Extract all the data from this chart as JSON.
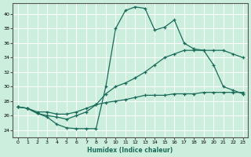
{
  "xlabel": "Humidex (Indice chaleur)",
  "bg_color": "#cceedd",
  "line_color": "#1a6b5a",
  "grid_color": "#ffffff",
  "xlim": [
    -0.5,
    23.5
  ],
  "ylim": [
    23.0,
    41.5
  ],
  "yticks": [
    24,
    26,
    28,
    30,
    32,
    34,
    36,
    38,
    40
  ],
  "xticks": [
    0,
    1,
    2,
    3,
    4,
    5,
    6,
    7,
    8,
    9,
    10,
    11,
    12,
    13,
    14,
    15,
    16,
    17,
    18,
    19,
    20,
    21,
    22,
    23
  ],
  "line1_x": [
    0,
    1,
    2,
    3,
    4,
    5,
    6,
    7,
    8,
    9,
    10,
    11,
    12,
    13,
    14,
    15,
    16,
    17,
    18,
    19,
    20,
    21,
    22,
    23
  ],
  "line1_y": [
    27.2,
    27.0,
    26.3,
    25.8,
    24.8,
    24.3,
    24.2,
    24.2,
    24.2,
    30.0,
    38.0,
    40.5,
    41.0,
    40.8,
    37.8,
    38.2,
    39.2,
    36.0,
    35.2,
    35.0,
    33.0,
    30.0,
    29.5,
    29.0
  ],
  "line2_x": [
    0,
    1,
    2,
    3,
    4,
    5,
    6,
    7,
    8,
    9,
    10,
    11,
    12,
    13,
    14,
    15,
    16,
    17,
    18,
    19,
    20,
    21,
    22,
    23
  ],
  "line2_y": [
    27.2,
    27.0,
    26.3,
    26.0,
    25.8,
    25.5,
    26.0,
    26.5,
    27.5,
    29.0,
    30.0,
    30.5,
    31.2,
    32.0,
    33.0,
    34.0,
    34.5,
    35.0,
    35.0,
    35.0,
    35.0,
    35.0,
    34.5,
    34.0
  ],
  "line3_x": [
    0,
    1,
    2,
    3,
    4,
    5,
    6,
    7,
    8,
    9,
    10,
    11,
    12,
    13,
    14,
    15,
    16,
    17,
    18,
    19,
    20,
    21,
    22,
    23
  ],
  "line3_y": [
    27.2,
    27.0,
    26.5,
    26.5,
    26.2,
    26.2,
    26.5,
    27.0,
    27.5,
    27.8,
    28.0,
    28.2,
    28.5,
    28.8,
    28.8,
    28.8,
    29.0,
    29.0,
    29.0,
    29.2,
    29.2,
    29.2,
    29.2,
    29.2
  ]
}
